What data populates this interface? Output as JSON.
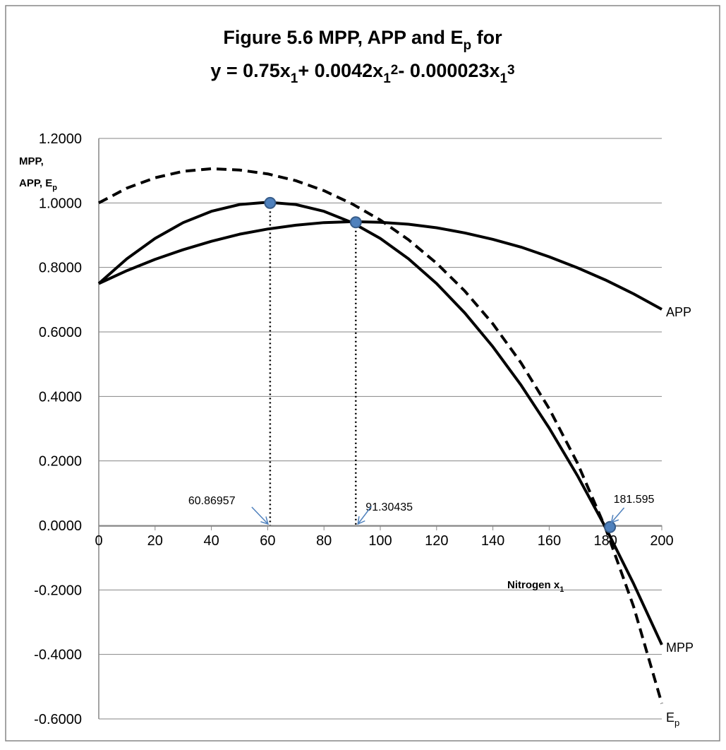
{
  "chart_data": {
    "type": "line",
    "title": {
      "line1": {
        "pre": "Figure 5.6  MPP, APP and E",
        "sub": "p",
        "post": " for"
      },
      "line2": [
        {
          "t": "y = 0.75x",
          "s": "normal"
        },
        {
          "t": "1",
          "s": "sub"
        },
        {
          "t": "+ 0.0042x",
          "s": "normal"
        },
        {
          "t": "1",
          "s": "sub"
        },
        {
          "t": "2",
          "s": "sup"
        },
        {
          "t": "- 0.000023x",
          "s": "normal"
        },
        {
          "t": "1",
          "s": "sub"
        },
        {
          "t": "3",
          "s": "sup"
        }
      ]
    },
    "ylabel": {
      "line1": "MPP,",
      "line2_pre": "APP, E",
      "line2_sub": "p"
    },
    "xlabel": {
      "pre": "Nitrogen x",
      "sub": "1"
    },
    "xlim": [
      0,
      200
    ],
    "ylim": [
      -0.6,
      1.2
    ],
    "x_ticks": [
      "0",
      "20",
      "40",
      "60",
      "80",
      "100",
      "120",
      "140",
      "160",
      "180",
      "200"
    ],
    "y_ticks": [
      "1.2000",
      "1.0000",
      "0.8000",
      "0.6000",
      "0.4000",
      "0.2000",
      "0.0000",
      "-0.2000",
      "-0.4000",
      "-0.6000"
    ],
    "grid": "horizontal",
    "x": [
      0,
      10,
      20,
      30,
      40,
      50,
      60,
      70,
      80,
      90,
      100,
      110,
      120,
      130,
      140,
      150,
      160,
      170,
      180,
      190,
      200
    ],
    "series": [
      {
        "name": "MPP",
        "style": "solid",
        "values": [
          0.75,
          0.827,
          0.89,
          0.939,
          0.974,
          0.995,
          1.002,
          0.995,
          0.974,
          0.939,
          0.89,
          0.827,
          0.75,
          0.659,
          0.554,
          0.435,
          0.302,
          0.155,
          -0.006,
          -0.181,
          -0.37
        ]
      },
      {
        "name": "APP",
        "style": "solid",
        "values": [
          0.75,
          0.79,
          0.825,
          0.855,
          0.881,
          0.903,
          0.919,
          0.931,
          0.939,
          0.942,
          0.94,
          0.934,
          0.923,
          0.907,
          0.887,
          0.863,
          0.833,
          0.799,
          0.761,
          0.718,
          0.67
        ]
      },
      {
        "name": "E",
        "name_sub": "p",
        "style": "dashed",
        "values": [
          1.0,
          1.046,
          1.078,
          1.098,
          1.106,
          1.102,
          1.09,
          1.069,
          1.038,
          0.997,
          0.947,
          0.886,
          0.813,
          0.727,
          0.625,
          0.504,
          0.362,
          0.194,
          -0.008,
          -0.252,
          -0.552
        ]
      }
    ],
    "markers": [
      {
        "x": 60.87,
        "y": 1.0
      },
      {
        "x": 91.3,
        "y": 0.94
      },
      {
        "x": 181.6,
        "y": -0.005
      }
    ],
    "annotations": [
      {
        "text": "60.86957",
        "x": 60.86957
      },
      {
        "text": "91.30435",
        "x": 91.30435
      },
      {
        "text": "181.595",
        "x": 181.595
      }
    ],
    "colors": {
      "line": "#000000",
      "marker": "#4f81bd",
      "marker_edge": "#385d8a",
      "arrow": "#4f81bd",
      "grid": "#868686",
      "border": "#868686"
    }
  }
}
